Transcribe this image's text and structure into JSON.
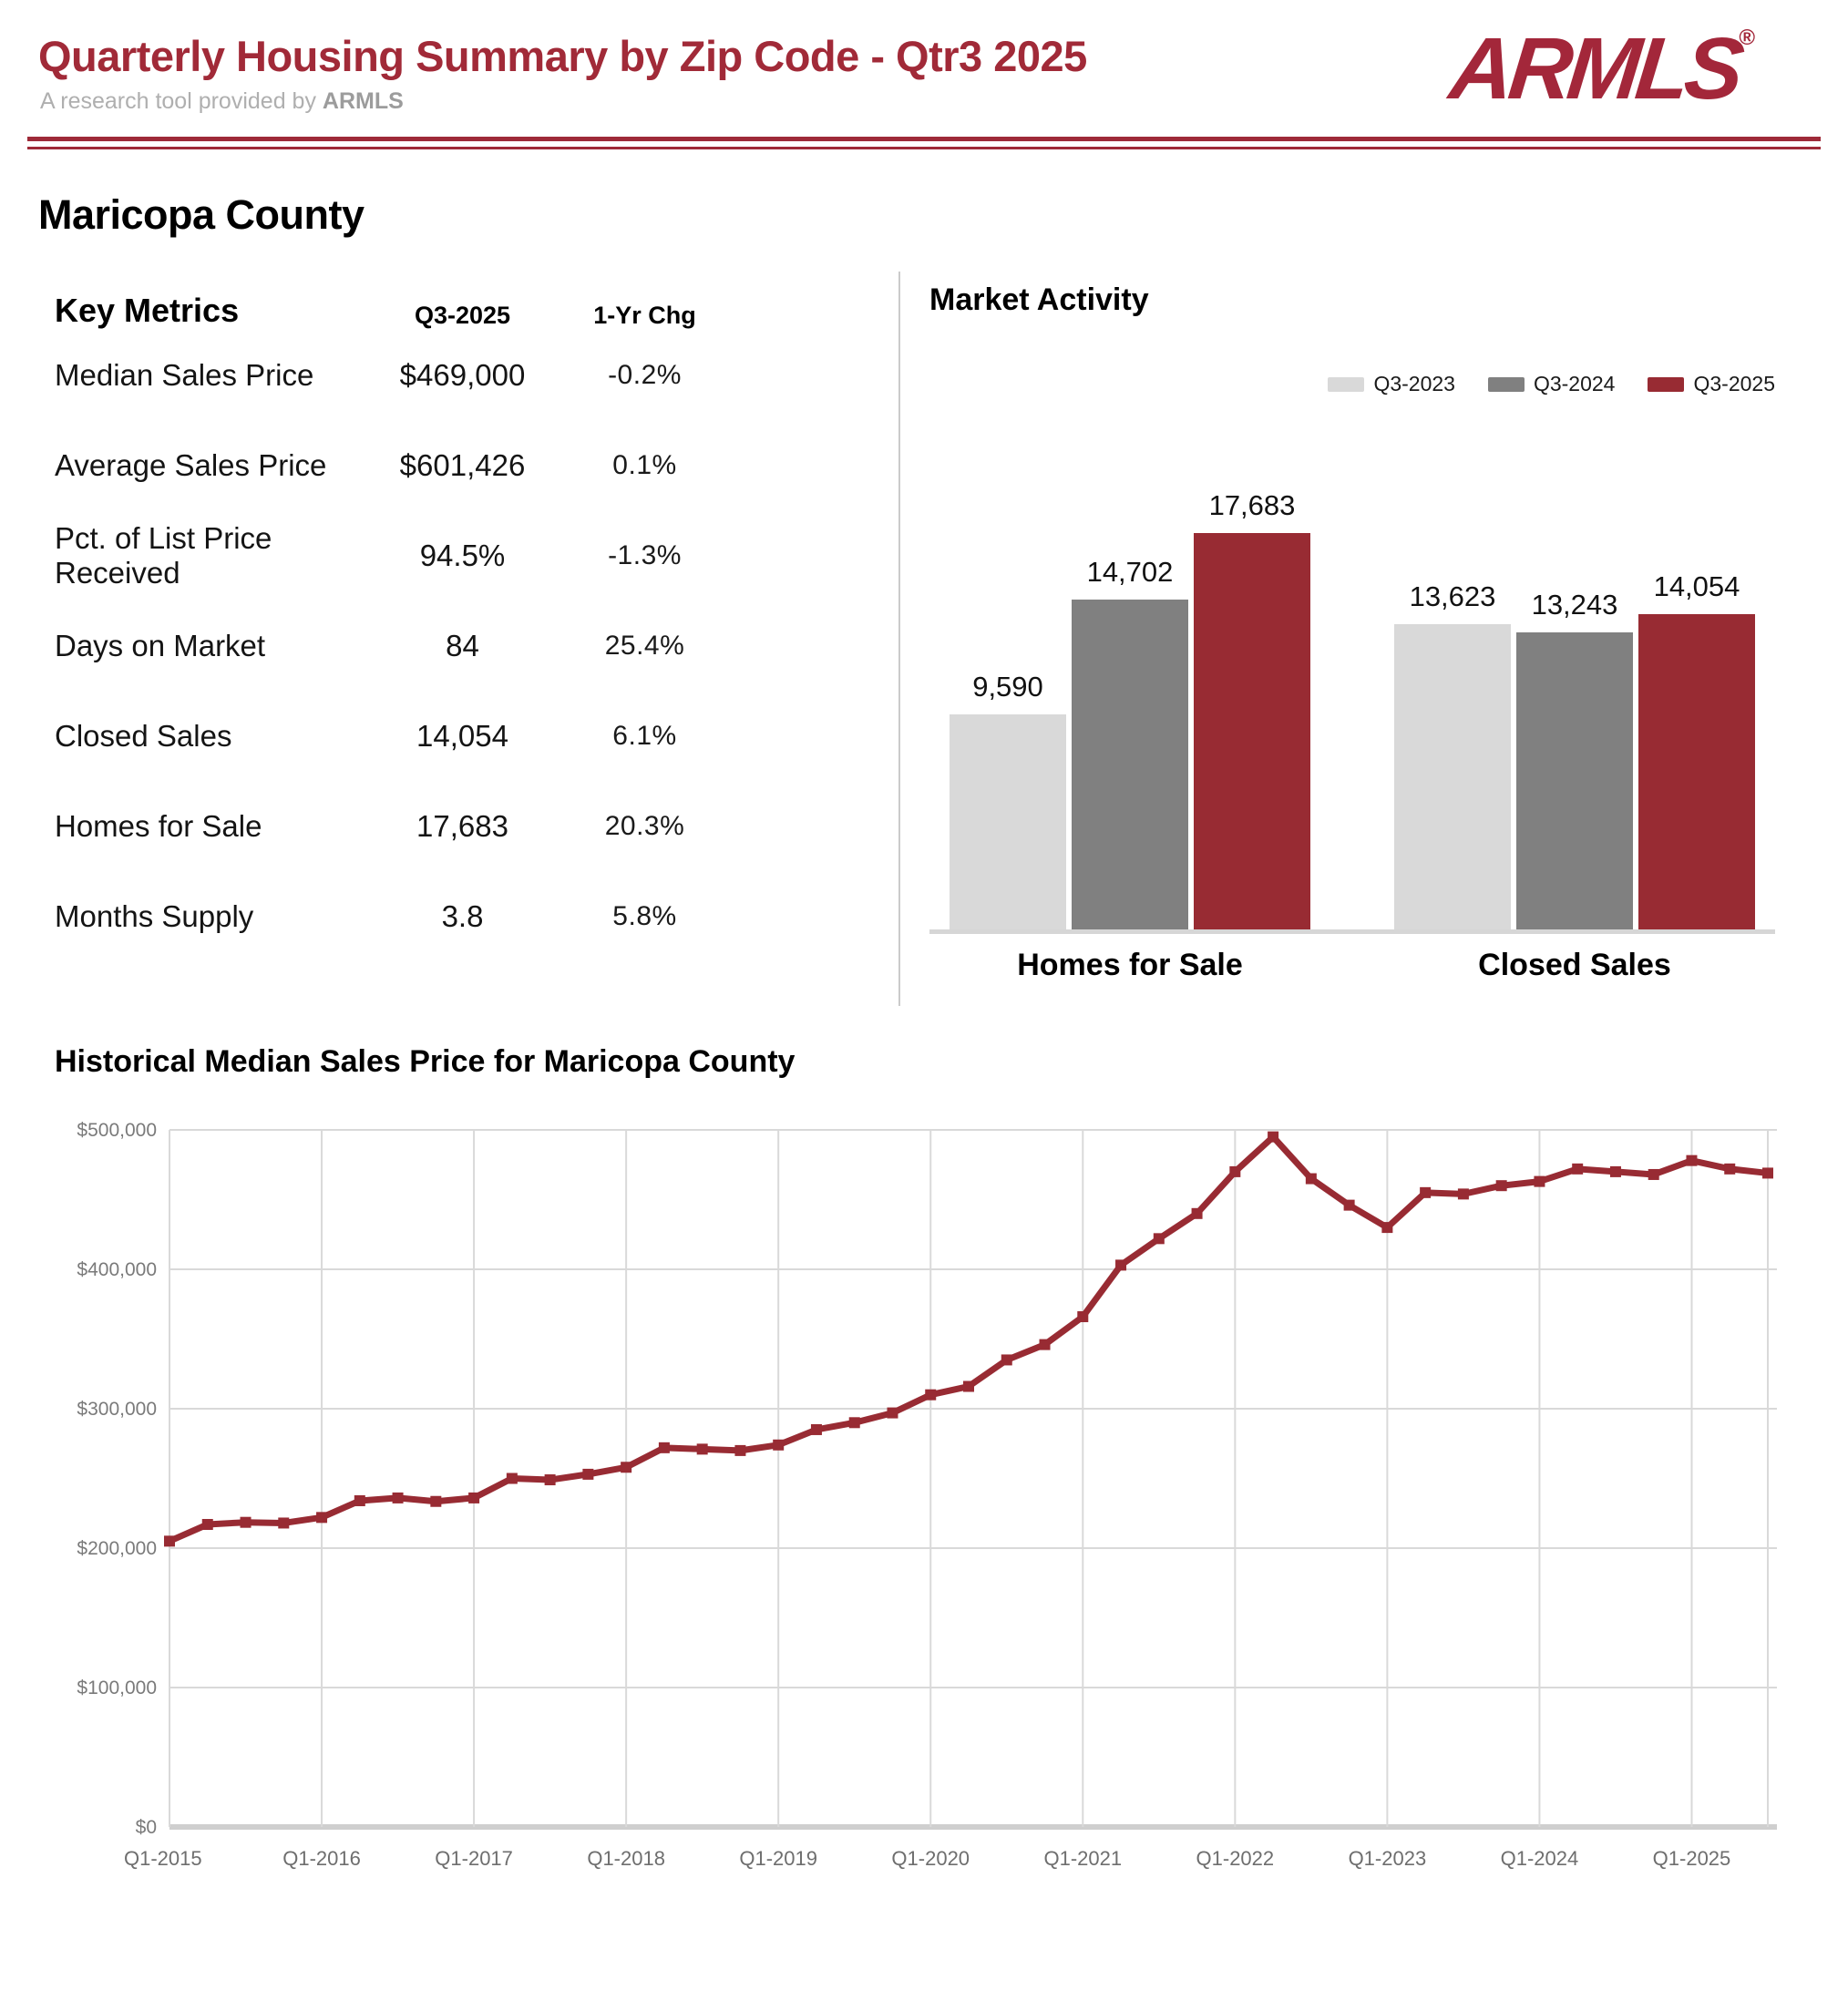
{
  "header": {
    "title": "Quarterly Housing Summary by Zip Code - Qtr3 2025",
    "subtitle_prefix": "A research tool provided by ",
    "subtitle_brand": "ARMLS",
    "logo_text": "ARMLS",
    "logo_reg_mark": "®",
    "accent_color": "#9E2A38"
  },
  "page": {
    "county_title": "Maricopa County"
  },
  "key_metrics": {
    "title": "Key Metrics",
    "col_period": "Q3-2025",
    "col_change": "1-Yr Chg",
    "rows": [
      {
        "label": "Median Sales Price",
        "value": "$469,000",
        "change": "-0.2%"
      },
      {
        "label": "Average Sales Price",
        "value": "$601,426",
        "change": "0.1%"
      },
      {
        "label": "Pct. of List Price Received",
        "value": "94.5%",
        "change": "-1.3%"
      },
      {
        "label": "Days on Market",
        "value": "84",
        "change": "25.4%"
      },
      {
        "label": "Closed Sales",
        "value": "14,054",
        "change": "6.1%"
      },
      {
        "label": "Homes for Sale",
        "value": "17,683",
        "change": "20.3%"
      },
      {
        "label": "Months Supply",
        "value": "3.8",
        "change": "5.8%"
      }
    ]
  },
  "chart_data": [
    {
      "type": "bar",
      "title": "Market Activity",
      "categories": [
        "Homes for Sale",
        "Closed Sales"
      ],
      "series": [
        {
          "name": "Q3-2023",
          "color": "#D9D9D9",
          "values": [
            9590,
            13623
          ]
        },
        {
          "name": "Q3-2024",
          "color": "#808080",
          "values": [
            14702,
            13243
          ]
        },
        {
          "name": "Q3-2025",
          "color": "#982B33",
          "values": [
            17683,
            14054
          ]
        }
      ],
      "legend_position": "top-right",
      "ylim": [
        0,
        18300
      ],
      "grid": false,
      "baseline_color": "#D6D6D6"
    },
    {
      "type": "line",
      "title": "Historical Median Sales Price for Maricopa County",
      "x": [
        "Q1-2015",
        "Q2-2015",
        "Q3-2015",
        "Q4-2015",
        "Q1-2016",
        "Q2-2016",
        "Q3-2016",
        "Q4-2016",
        "Q1-2017",
        "Q2-2017",
        "Q3-2017",
        "Q4-2017",
        "Q1-2018",
        "Q2-2018",
        "Q3-2018",
        "Q4-2018",
        "Q1-2019",
        "Q2-2019",
        "Q3-2019",
        "Q4-2019",
        "Q1-2020",
        "Q2-2020",
        "Q3-2020",
        "Q4-2020",
        "Q1-2021",
        "Q2-2021",
        "Q3-2021",
        "Q4-2021",
        "Q1-2022",
        "Q2-2022",
        "Q3-2022",
        "Q4-2022",
        "Q1-2023",
        "Q2-2023",
        "Q3-2023",
        "Q4-2023",
        "Q1-2024",
        "Q2-2024",
        "Q3-2024",
        "Q4-2024",
        "Q1-2025",
        "Q2-2025",
        "Q3-2025"
      ],
      "series": [
        {
          "name": "Median Sales Price",
          "color": "#982B33",
          "marker": "square",
          "values": [
            205000,
            217000,
            218500,
            218000,
            222000,
            234000,
            236000,
            233500,
            236000,
            250000,
            249000,
            253000,
            258000,
            272000,
            271000,
            270000,
            274000,
            285000,
            290000,
            297000,
            310000,
            316000,
            335000,
            346000,
            366000,
            403000,
            422000,
            440000,
            470000,
            495000,
            465000,
            446000,
            430000,
            455000,
            454000,
            460000,
            463000,
            472000,
            470000,
            468000,
            478000,
            472000,
            469000
          ]
        }
      ],
      "x_tick_labels": [
        "Q1-2015",
        "Q1-2016",
        "Q1-2017",
        "Q1-2018",
        "Q1-2019",
        "Q1-2020",
        "Q1-2021",
        "Q1-2022",
        "Q1-2023",
        "Q1-2024",
        "Q1-2025"
      ],
      "y_tick_labels": [
        "$0",
        "$100,000",
        "$200,000",
        "$300,000",
        "$400,000",
        "$500,000"
      ],
      "y_tick_values": [
        0,
        100000,
        200000,
        300000,
        400000,
        500000
      ],
      "ylim": [
        0,
        500000
      ],
      "grid": true,
      "grid_color": "#D9D9D9",
      "axis_text_color": "#7A7A7A"
    }
  ]
}
